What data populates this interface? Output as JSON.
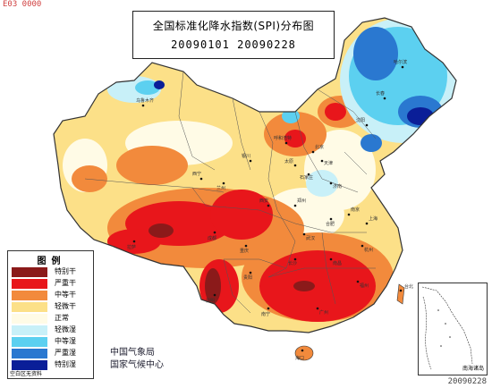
{
  "map": {
    "title": "全国标准化降水指数(SPI)分布图",
    "date_range": "20090101  20090228",
    "corner_top_left": "E03 0000",
    "corner_bottom_right": "20090228",
    "issuer_lines": [
      "中国气象局",
      "国家气候中心"
    ],
    "inset_label": "南海诸岛",
    "legend": {
      "title": "图例",
      "note": "空白区无资料",
      "items": [
        {
          "label": "特别干",
          "color": "#8b1a1a"
        },
        {
          "label": "严重干",
          "color": "#e8161b"
        },
        {
          "label": "中等干",
          "color": "#f28a3c"
        },
        {
          "label": "轻微干",
          "color": "#fce088"
        },
        {
          "label": "正常",
          "color": "#fffbe6"
        },
        {
          "label": "轻微湿",
          "color": "#c8f0f8"
        },
        {
          "label": "中等湿",
          "color": "#5cd0f0"
        },
        {
          "label": "严重湿",
          "color": "#2a78d0"
        },
        {
          "label": "特别湿",
          "color": "#0a1e98"
        }
      ]
    },
    "cities": [
      "乌鲁木齐",
      "哈尔滨",
      "长春",
      "沈阳",
      "北京",
      "天津",
      "呼和浩特",
      "太原",
      "石家庄",
      "济南",
      "银川",
      "西宁",
      "兰州",
      "郑州",
      "西安",
      "南京",
      "合肥",
      "上海",
      "拉萨",
      "成都",
      "武汉",
      "杭州",
      "重庆",
      "长沙",
      "贵阳",
      "南昌",
      "福州",
      "昆明",
      "台北",
      "南宁",
      "广州",
      "海口"
    ]
  }
}
